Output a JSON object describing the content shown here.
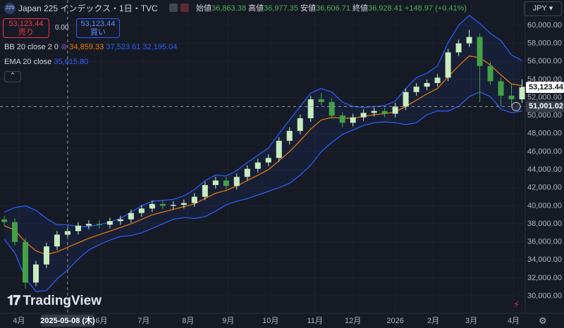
{
  "header": {
    "symbol_badge": "225",
    "title": "Japan 225 インデックス・1日・TVC",
    "ohlc": [
      {
        "label": "始値",
        "value": "36,863.38"
      },
      {
        "label": "高値",
        "value": "36,977.35"
      },
      {
        "label": "安値",
        "value": "36,606.71"
      },
      {
        "label": "終値",
        "value": "36,928.41"
      }
    ],
    "change": "+148.97 (+0.41%)",
    "sell": {
      "price": "53,123.44",
      "label": "売り"
    },
    "spread": "0.00",
    "buy": {
      "price": "53,123.44",
      "label": "買い"
    },
    "currency": "JPY",
    "logo": "TradingView"
  },
  "chart_data": {
    "type": "candlestick",
    "x": [
      2,
      7,
      12,
      17,
      22,
      27,
      32,
      37,
      42,
      47,
      52,
      57,
      62,
      67,
      72,
      77,
      82,
      87,
      92,
      97,
      102,
      107,
      112,
      117,
      122,
      127,
      132,
      137,
      142,
      147,
      152,
      157,
      162,
      167,
      172,
      177,
      182,
      187,
      192,
      197,
      202,
      207,
      212,
      217,
      222,
      227,
      232,
      237,
      242,
      247
    ],
    "open": [
      38500,
      38200,
      36000,
      31500,
      33500,
      35500,
      36800,
      37200,
      37800,
      38000,
      37900,
      38300,
      38500,
      39200,
      39700,
      40200,
      40000,
      40100,
      40300,
      41000,
      42300,
      42800,
      42200,
      43200,
      44100,
      44800,
      45300,
      47200,
      48300,
      49700,
      51800,
      51500,
      50000,
      49200,
      49800,
      50300,
      50500,
      50200,
      51000,
      52600,
      53200,
      53600,
      54200,
      57000,
      58000,
      58700,
      55500,
      53800,
      52200,
      51800
    ],
    "high": [
      38900,
      38600,
      36400,
      33900,
      35900,
      37200,
      37600,
      38200,
      38400,
      38400,
      38700,
      38900,
      39600,
      40100,
      40600,
      40600,
      40500,
      40700,
      41400,
      42700,
      43200,
      43200,
      43600,
      44500,
      45200,
      45700,
      47600,
      48700,
      50100,
      52200,
      52500,
      51900,
      50400,
      50200,
      50700,
      50900,
      50900,
      51400,
      53000,
      53600,
      54000,
      54600,
      57400,
      58400,
      59500,
      59100,
      55900,
      54200,
      53500,
      54000
    ],
    "low": [
      37800,
      35600,
      30800,
      31100,
      33100,
      35100,
      36400,
      36800,
      37400,
      37500,
      37500,
      37900,
      38100,
      38800,
      39300,
      39600,
      39600,
      39700,
      39900,
      40600,
      41900,
      41800,
      41800,
      42800,
      43700,
      44400,
      44900,
      46800,
      47900,
      49300,
      51100,
      49600,
      48700,
      48800,
      49400,
      49900,
      49800,
      49800,
      50600,
      52200,
      52800,
      53200,
      53800,
      56600,
      57600,
      51500,
      53400,
      51000,
      51000,
      51400
    ],
    "close": [
      38200,
      36000,
      31500,
      33500,
      35500,
      36800,
      37200,
      37800,
      38000,
      37900,
      38300,
      38500,
      39200,
      39700,
      40200,
      40000,
      40100,
      40300,
      41000,
      42300,
      42800,
      42200,
      43200,
      44100,
      44800,
      45300,
      47200,
      48300,
      49700,
      51800,
      51500,
      50000,
      49200,
      49800,
      50300,
      50500,
      50200,
      51000,
      52600,
      53200,
      53600,
      54200,
      57000,
      58000,
      58700,
      55500,
      53800,
      52200,
      51800,
      53123.44
    ],
    "up_color": "#c8ecc0",
    "down_color": "#43a047",
    "indicators": [
      {
        "name": "BB 20 close 2 0",
        "color": "#2962ff",
        "legend_values": [
          "34,859.33",
          "37,523.61",
          "32,195.04"
        ],
        "upper": [
          39300,
          39800,
          40000,
          39500,
          38600,
          37900,
          37900,
          37700,
          37700,
          37900,
          38200,
          38600,
          39300,
          40000,
          40500,
          40600,
          40700,
          41100,
          41800,
          42800,
          43400,
          43300,
          43900,
          44800,
          45600,
          46400,
          48000,
          49500,
          51000,
          52500,
          53000,
          52600,
          51500,
          51000,
          50900,
          51000,
          51100,
          51600,
          53000,
          54200,
          54700,
          55500,
          58100,
          60000,
          61100,
          60200,
          59100,
          58300,
          56700,
          56100
        ],
        "lower": [
          36300,
          34800,
          32000,
          30500,
          30600,
          31900,
          32900,
          34100,
          35100,
          35700,
          36200,
          36600,
          36700,
          37000,
          37500,
          38000,
          38500,
          38700,
          38600,
          38800,
          39400,
          40100,
          40500,
          40800,
          41200,
          41600,
          42000,
          42500,
          43400,
          44500,
          46000,
          47000,
          47900,
          48400,
          48900,
          49200,
          49300,
          49200,
          49000,
          49200,
          50100,
          50500,
          50500,
          51000,
          52100,
          52600,
          52100,
          50700,
          50300,
          50500
        ]
      },
      {
        "name": "EMA 20 close",
        "color": "#f57c00",
        "legend_values": [
          "35,615.80"
        ],
        "values": [
          37800,
          37300,
          36000,
          35000,
          34600,
          34900,
          35400,
          35900,
          36400,
          36800,
          37200,
          37600,
          38000,
          38500,
          39000,
          39300,
          39600,
          39900,
          40200,
          40800,
          41400,
          41700,
          42200,
          42800,
          43400,
          44000,
          45000,
          46000,
          47200,
          48500,
          49500,
          49800,
          49700,
          49700,
          49900,
          50100,
          50200,
          50400,
          51000,
          51700,
          52400,
          53000,
          54300,
          55500,
          56600,
          56400,
          55600,
          54500,
          53500,
          53300
        ]
      }
    ],
    "xlim": [
      0,
      248.5
    ],
    "xticks": [
      {
        "value": 9,
        "label": "4月"
      },
      {
        "value": 48,
        "label": "6月"
      },
      {
        "value": 68,
        "label": "7月"
      },
      {
        "value": 89,
        "label": "8月"
      },
      {
        "value": 108,
        "label": "9月"
      },
      {
        "value": 128,
        "label": "10月"
      },
      {
        "value": 149,
        "label": "11月"
      },
      {
        "value": 167,
        "label": "12月"
      },
      {
        "value": 187,
        "label": "2026"
      },
      {
        "value": 205,
        "label": "2月"
      },
      {
        "value": 223,
        "label": "3月"
      },
      {
        "value": 243,
        "label": "4月"
      }
    ],
    "ylim": [
      28100,
      62800
    ],
    "yticks": [
      {
        "value": 30000,
        "label": "30,000.00"
      },
      {
        "value": 32000,
        "label": "32,000.00"
      },
      {
        "value": 34000,
        "label": "34,000.00"
      },
      {
        "value": 36000,
        "label": "36,000.00"
      },
      {
        "value": 38000,
        "label": "38,000.00"
      },
      {
        "value": 40000,
        "label": "40,000.00"
      },
      {
        "value": 42000,
        "label": "42,000.00"
      },
      {
        "value": 44000,
        "label": "44,000.00"
      },
      {
        "value": 46000,
        "label": "46,000.00"
      },
      {
        "value": 48000,
        "label": "48,000.00"
      },
      {
        "value": 50000,
        "label": "50,000.00"
      },
      {
        "value": 52000,
        "label": "52,000.00"
      },
      {
        "value": 54000,
        "label": "54,000.00"
      },
      {
        "value": 56000,
        "label": "56,000.00"
      },
      {
        "value": 58000,
        "label": "58,000.00"
      },
      {
        "value": 60000,
        "label": "60,000.00"
      }
    ],
    "grid": true,
    "last_price": {
      "value": 53123.44,
      "label": "53,123.44"
    },
    "crosshair_y": {
      "value": 51001.02,
      "label": "51,001.02"
    },
    "crosshair_x": {
      "value": 32,
      "label": "2025-05-08 (木)"
    }
  }
}
